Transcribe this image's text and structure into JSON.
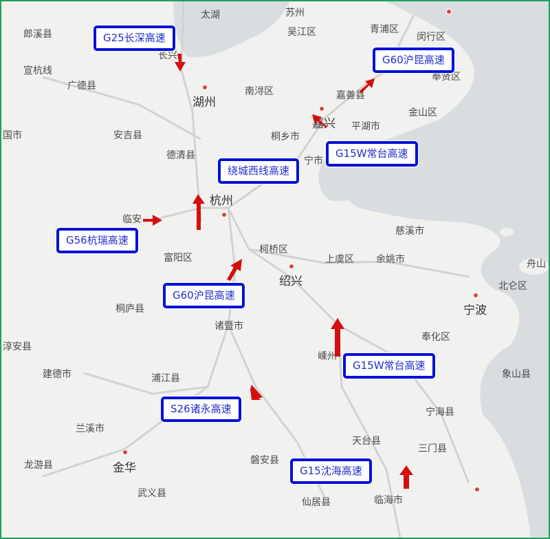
{
  "map": {
    "colors": {
      "land": "#f1f1ef",
      "water": "#dadde0",
      "road": "#d2d2d2",
      "label_border": "#0010d8",
      "label_text": "#1f2fd0",
      "congestion": "#d40f0f",
      "city_dot": "#e0413e",
      "frame": "#1ea05a"
    },
    "places": {
      "taihu": "太湖",
      "suzhou": "苏州",
      "langxi": "郎溪县",
      "wujiang": "吴江区",
      "qingpu": "青浦区",
      "minhang": "闵行区",
      "changxing": "长兴",
      "xuanhang": "宣杭线",
      "guangde": "广德县",
      "huzhou": "湖州",
      "nanxun": "南浔区",
      "jiashan": "嘉善县",
      "fengxian": "奉贤区",
      "jinshan": "金山区",
      "jiaxing": "嘉兴",
      "pinghu": "平湖市",
      "tongxiang": "桐乡市",
      "ningguo": "国市",
      "anji": "安吉县",
      "deqing": "德清县",
      "haining": "宁市",
      "hangzhou": "杭州",
      "linan": "临安",
      "cixi": "慈溪市",
      "keqiao": "柯桥区",
      "fuyang": "富阳区",
      "shangyu": "上虞区",
      "yuyao": "余姚市",
      "zhoushan": "舟山",
      "shaoxing": "绍兴",
      "beilun": "北仑区",
      "tonglu": "桐庐县",
      "ningbo": "宁波",
      "zhuji": "诸暨市",
      "chunan": "淳安县",
      "fenghua": "奉化区",
      "shengzhou": "嵊州",
      "jiande": "建德市",
      "pujiang": "浦江县",
      "xiangshan": "象山县",
      "ninghai": "宁海县",
      "lanxi": "兰溪市",
      "tiantai": "天台县",
      "sanmen": "三门县",
      "longyou": "龙游县",
      "jinhua": "金华",
      "panan": "磐安县",
      "wuyi": "武义县",
      "xianju": "仙居县",
      "linhai": "临海市"
    },
    "road_labels": {
      "g25": "G25长深高速",
      "g60_north": "G60沪昆高速",
      "g15w_north": "G15W常台高速",
      "raocheng": "绕城西线高速",
      "g56": "G56杭瑞高速",
      "g60_south": "G60沪昆高速",
      "g15w_south": "G15W常台高速",
      "s26": "S26诸永高速",
      "g15": "G15沈海高速"
    },
    "congestion_arrows": [
      "g25-changxing",
      "g60-jiashan",
      "g60-jiaxing",
      "raocheng-hangzhou",
      "g56-linan",
      "g60-keqiao",
      "g15w-shengzhou",
      "s26-pujiang",
      "g15-linhai"
    ]
  }
}
